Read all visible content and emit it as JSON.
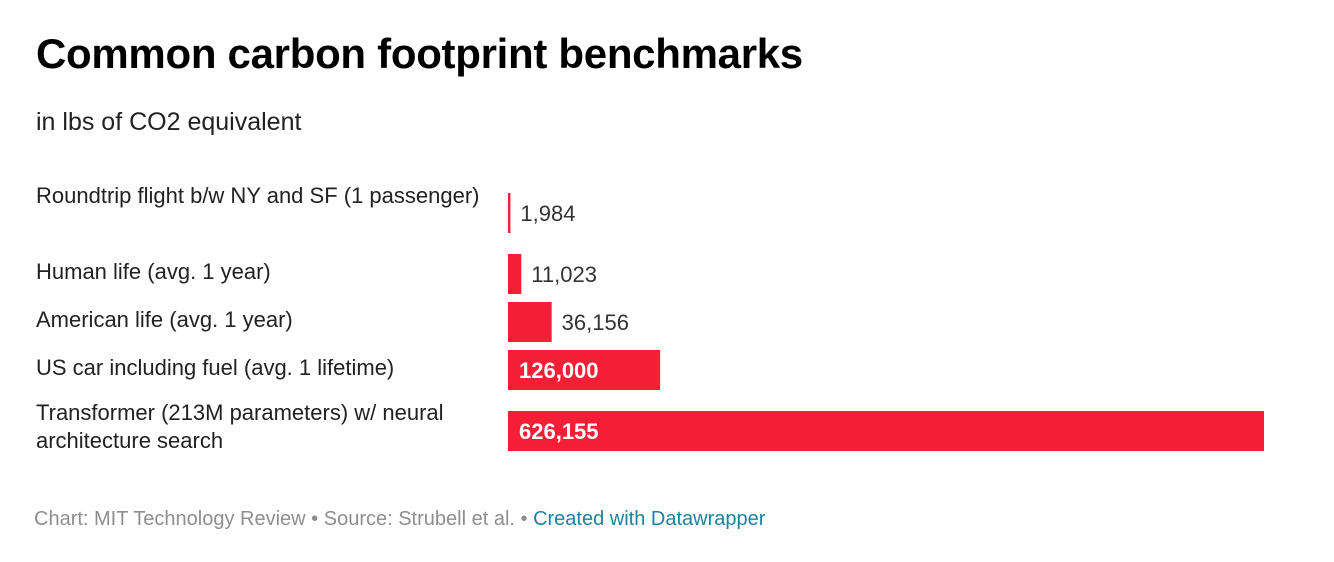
{
  "chart_data": {
    "type": "bar",
    "orientation": "horizontal",
    "title": "Common carbon footprint benchmarks",
    "subtitle": "in lbs of CO2 equivalent",
    "categories": [
      "Roundtrip flight b/w NY and SF (1 passenger)",
      "Human life (avg. 1 year)",
      "American life (avg. 1 year)",
      "US car including fuel (avg. 1 lifetime)",
      "Transformer (213M parameters) w/ neural architecture search"
    ],
    "values": [
      1984,
      11023,
      36156,
      126000,
      626155
    ],
    "value_labels": [
      "1,984",
      "11,023",
      "36,156",
      "126,000",
      "626,155"
    ],
    "bar_color": "#f41f35",
    "xlim": [
      0,
      626155
    ],
    "grid": false,
    "legend": "none"
  },
  "footer": {
    "credit": "Chart: MIT Technology Review",
    "separator": " • ",
    "source": "Source: Strubell et al.",
    "link_text": "Created with Datawrapper",
    "link_color": "#1d81a2"
  }
}
